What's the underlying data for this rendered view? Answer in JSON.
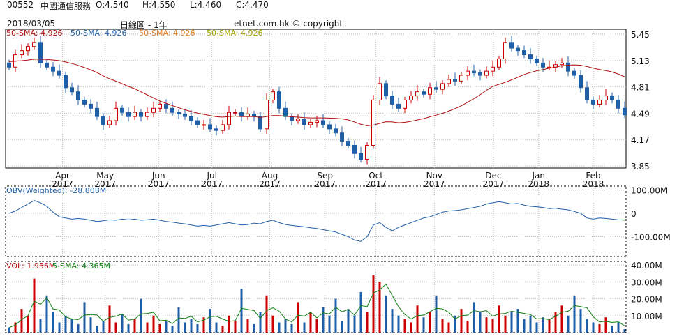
{
  "header": {
    "code": "00552",
    "name": "中國通信服務",
    "open": "O:4.540",
    "high": "H:4.550",
    "low": "L:4.460",
    "close": "C:4.470",
    "date": "2018/03/05",
    "chart_type": "日線圖 - 1年",
    "copyright": "etnet.com.hk © copyright"
  },
  "colors": {
    "up": "#cc0000",
    "down": "#1f5fa8",
    "sma": "#b01010",
    "obv": "#1f5fa8",
    "vol_sma": "#108010"
  },
  "chart_data": [
    {
      "type": "candlestick",
      "title": "00552 中國通信服務",
      "legend": [
        "50-SMA: 4.926",
        "50-SMA: 4.926",
        "50-SMA: 4.926",
        "50-SMA: 4.926"
      ],
      "yticks": [
        "5.45",
        "5.13",
        "4.81",
        "4.49",
        "4.17",
        "3.85"
      ],
      "ylim": [
        3.85,
        5.45
      ],
      "xticks": [
        [
          "Apr",
          "2017"
        ],
        [
          "May",
          "2017"
        ],
        [
          "Jun",
          "2017"
        ],
        [
          "Jul",
          "2017"
        ],
        [
          "Aug",
          "2017"
        ],
        [
          "Sep",
          "2017"
        ],
        [
          "Oct",
          "2017"
        ],
        [
          "Nov",
          "2017"
        ],
        [
          "Dec",
          "2017"
        ],
        [
          "Jan",
          "2018"
        ],
        [
          "Feb",
          "2018"
        ]
      ],
      "xtick_index": [
        8.5,
        15.3,
        23.8,
        32.3,
        41.5,
        50.3,
        58.4,
        67.7,
        77.1,
        84.3,
        93
      ],
      "close": [
        5.05,
        5.2,
        5.25,
        5.3,
        5.35,
        5.1,
        5.05,
        5.0,
        4.95,
        4.8,
        4.75,
        4.65,
        4.6,
        4.55,
        4.45,
        4.35,
        4.4,
        4.55,
        4.5,
        4.45,
        4.5,
        4.45,
        4.5,
        4.55,
        4.6,
        4.55,
        4.5,
        4.48,
        4.45,
        4.4,
        4.35,
        4.35,
        4.3,
        4.28,
        4.35,
        4.5,
        4.5,
        4.45,
        4.48,
        4.45,
        4.3,
        4.65,
        4.75,
        4.55,
        4.45,
        4.4,
        4.42,
        4.35,
        4.38,
        4.4,
        4.35,
        4.3,
        4.25,
        4.15,
        4.1,
        4.0,
        3.93,
        4.1,
        4.65,
        4.85,
        4.7,
        4.6,
        4.55,
        4.65,
        4.7,
        4.75,
        4.72,
        4.8,
        4.78,
        4.85,
        4.9,
        4.88,
        4.95,
        5.0,
        4.98,
        4.95,
        5.0,
        5.05,
        5.15,
        5.35,
        5.28,
        5.25,
        5.2,
        5.15,
        5.1,
        5.05,
        5.05,
        5.08,
        5.1,
        5.0,
        4.95,
        4.8,
        4.65,
        4.6,
        4.65,
        4.7,
        4.65,
        4.55,
        4.47
      ]
    },
    {
      "type": "line",
      "legend": "OBV(Weighted): -28.808M",
      "yticks": [
        "100.00M",
        "0",
        "-100.00M"
      ],
      "ylim": [
        -130,
        110
      ],
      "values": [
        0,
        10,
        25,
        40,
        55,
        45,
        30,
        5,
        -15,
        -20,
        -25,
        -22,
        -25,
        -30,
        -35,
        -32,
        -28,
        -30,
        -25,
        -28,
        -25,
        -30,
        -28,
        -25,
        -30,
        -35,
        -38,
        -42,
        -45,
        -50,
        -55,
        -52,
        -55,
        -50,
        -45,
        -40,
        -45,
        -50,
        -48,
        -42,
        -45,
        -35,
        -30,
        -40,
        -48,
        -52,
        -55,
        -58,
        -62,
        -65,
        -70,
        -75,
        -80,
        -90,
        -100,
        -115,
        -120,
        -100,
        -50,
        -40,
        -60,
        -75,
        -60,
        -50,
        -40,
        -30,
        -20,
        -15,
        -5,
        5,
        10,
        12,
        15,
        20,
        25,
        30,
        40,
        45,
        50,
        45,
        40,
        42,
        35,
        30,
        28,
        25,
        20,
        22,
        18,
        15,
        8,
        0,
        -20,
        -25,
        -20,
        -22,
        -25,
        -28,
        -29
      ]
    },
    {
      "type": "bar",
      "legend": [
        "VOL: 1.956M",
        "5-SMA: 4.365M"
      ],
      "yticks": [
        "40.00M",
        "30.00M",
        "20.00M",
        "10.00M"
      ],
      "ylim": [
        0,
        40
      ],
      "values": [
        3,
        6,
        14,
        10,
        32,
        8,
        22,
        12,
        6,
        10,
        8,
        5,
        18,
        9,
        4,
        7,
        16,
        6,
        11,
        5,
        8,
        20,
        6,
        10,
        5,
        7,
        4,
        15,
        6,
        8,
        5,
        9,
        14,
        6,
        4,
        10,
        7,
        26,
        8,
        5,
        12,
        22,
        10,
        6,
        8,
        5,
        18,
        6,
        12,
        8,
        15,
        10,
        20,
        7,
        14,
        10,
        24,
        12,
        34,
        30,
        22,
        14,
        10,
        8,
        6,
        16,
        9,
        12,
        22,
        8,
        6,
        10,
        14,
        7,
        18,
        12,
        9,
        8,
        16,
        10,
        12,
        14,
        8,
        10,
        6,
        9,
        8,
        12,
        16,
        10,
        22,
        14,
        8,
        6,
        5,
        9,
        4,
        6,
        2
      ]
    }
  ]
}
